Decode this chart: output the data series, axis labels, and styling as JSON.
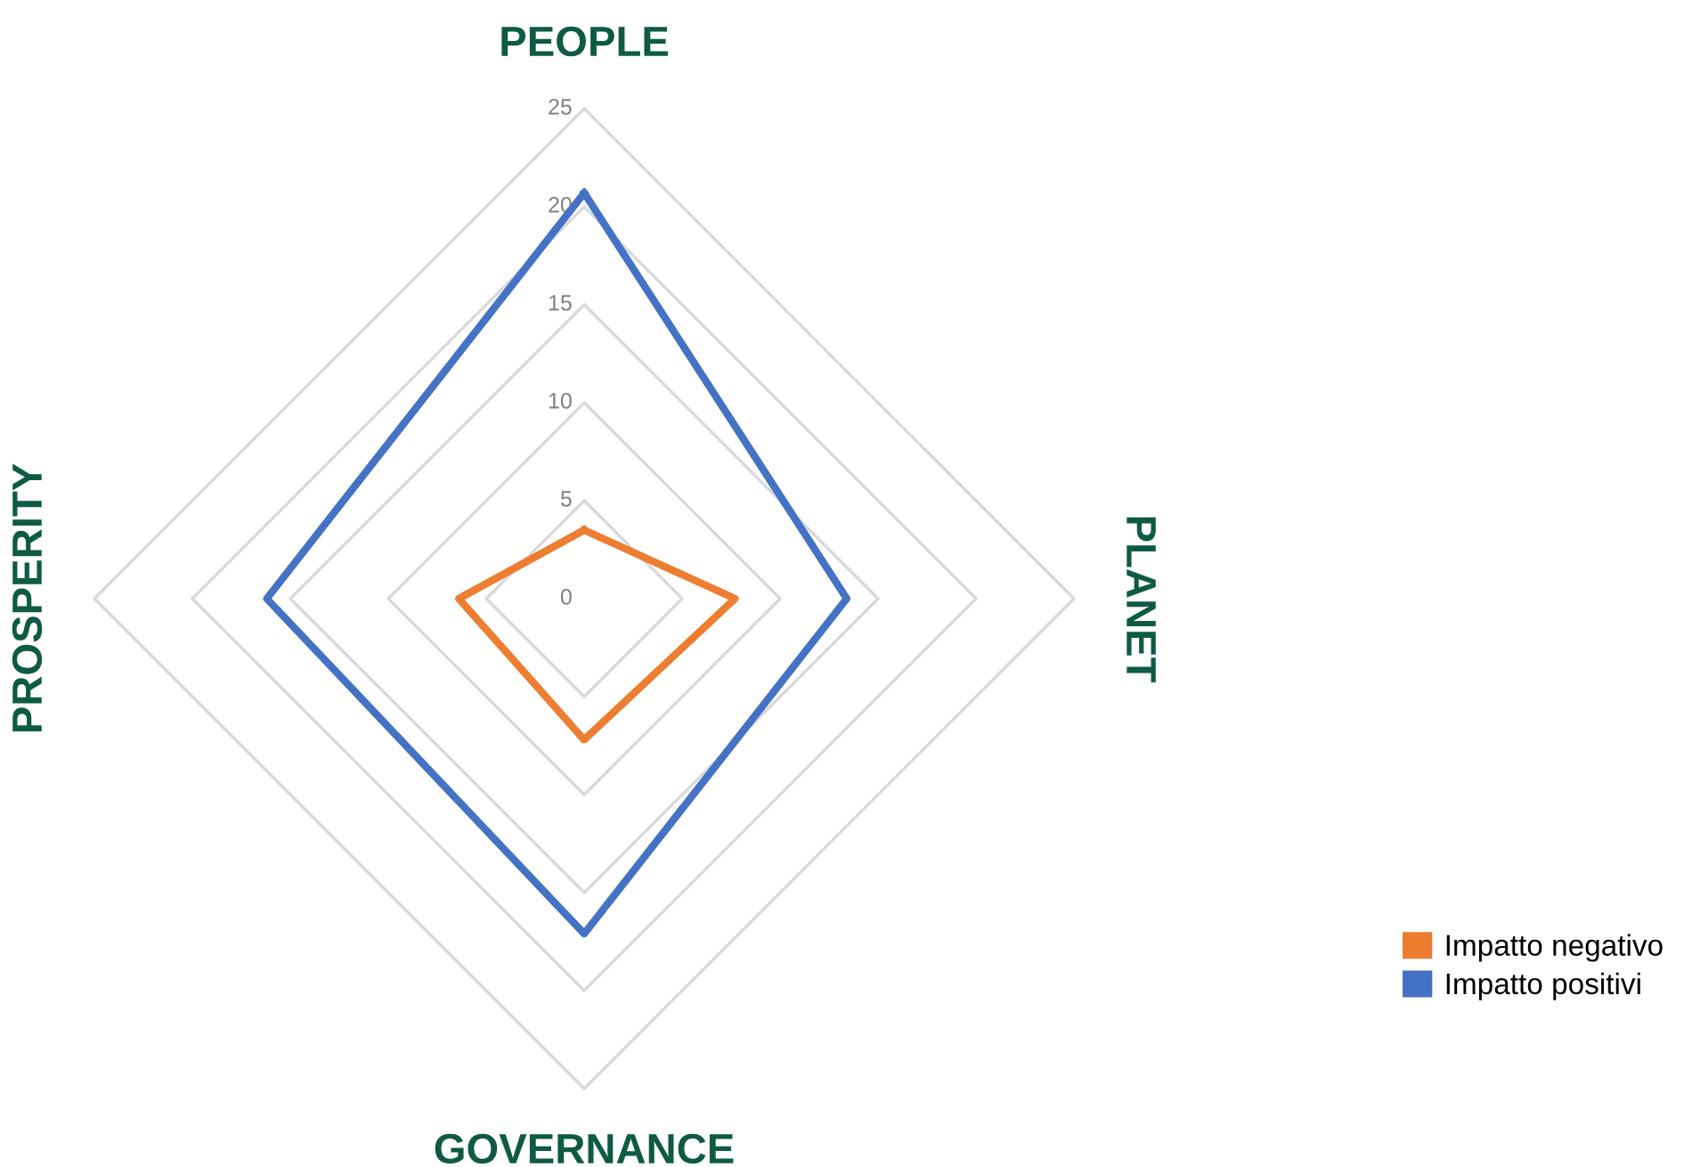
{
  "chart_data": {
    "type": "radar",
    "categories": [
      "PEOPLE",
      "PLANET",
      "GOVERNANCE",
      "PROSPERITY"
    ],
    "series": [
      {
        "name": "Impatto negativo",
        "color": "#ed7d31",
        "values": [
          3.5,
          7.7,
          7.2,
          6.4
        ]
      },
      {
        "name": "Impatto positivi",
        "color": "#4472c4",
        "values": [
          20.7,
          13.4,
          17.1,
          16.2
        ]
      }
    ],
    "ylim": [
      0,
      25
    ],
    "yticks": [
      0,
      5,
      10,
      15,
      20,
      25
    ],
    "grid": true,
    "legend": "bottom right",
    "marker": "none",
    "line_style": "solid"
  }
}
